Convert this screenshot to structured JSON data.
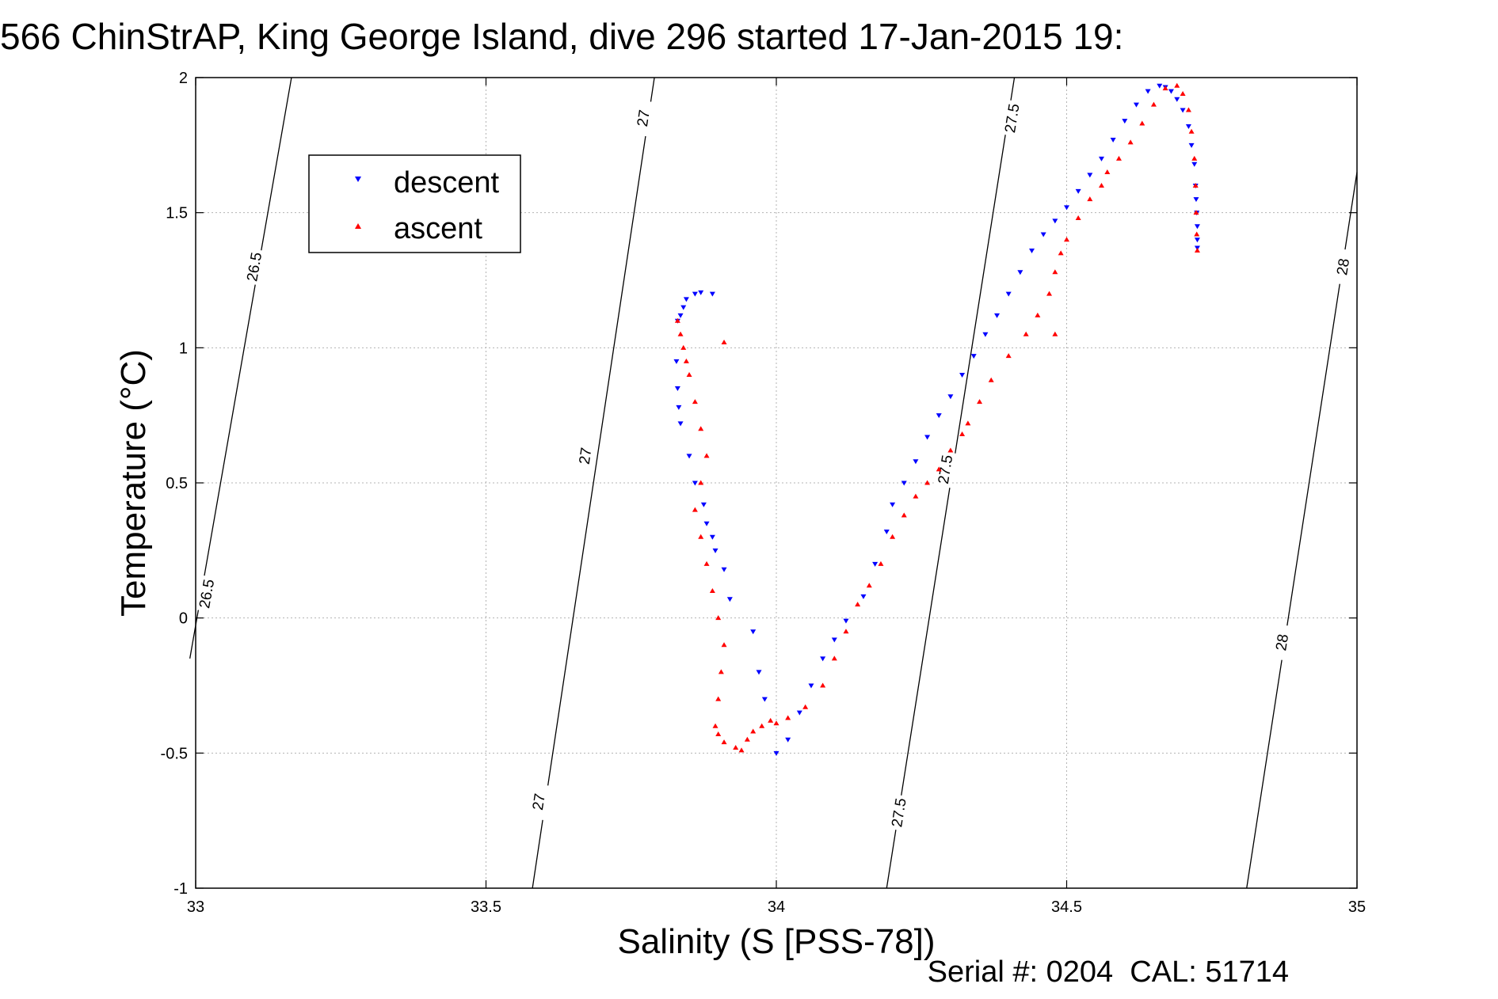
{
  "figure": {
    "title": "566 ChinStrAP, King George Island, dive 296 started 17-Jan-2015 19:",
    "footer": "Serial #: 0204  CAL: 51714"
  },
  "colors": {
    "descent": "#0000ff",
    "ascent": "#ff0000",
    "contour": "#000000",
    "grid": "#b3b3b3"
  },
  "chart_data": {
    "type": "scatter",
    "title": "566 ChinStrAP, King George Island, dive 296 started 17-Jan-2015 19:",
    "xlabel": "Salinity (S [PSS-78])",
    "ylabel": "Temperature (°C)",
    "xlim": [
      33,
      35
    ],
    "ylim": [
      -1,
      2
    ],
    "xticks": [
      33,
      33.5,
      34,
      34.5,
      35
    ],
    "xtick_labels": [
      "33",
      "33.5",
      "34",
      "34.5",
      "35"
    ],
    "yticks": [
      -1,
      -0.5,
      0,
      0.5,
      1,
      1.5,
      2
    ],
    "ytick_labels": [
      "-1",
      "-0.5",
      "0",
      "0.5",
      "1",
      "1.5",
      "2"
    ],
    "grid": true,
    "legend": {
      "placement": "top-left"
    },
    "contours": [
      {
        "level": "26.5",
        "start": [
          32.99,
          -0.15
        ],
        "end": [
          33.165,
          2
        ],
        "labels": [
          {
            "text": "26.5",
            "x": 33.018,
            "y": 0.09
          },
          {
            "text": "26.5",
            "x": 33.1,
            "y": 1.3
          }
        ]
      },
      {
        "level": "27",
        "start": [
          33.58,
          -1
        ],
        "end": [
          33.79,
          2
        ],
        "labels": [
          {
            "text": "27",
            "x": 33.59,
            "y": -0.68
          },
          {
            "text": "27",
            "x": 33.67,
            "y": 0.6
          },
          {
            "text": "27",
            "x": 33.77,
            "y": 1.85
          }
        ]
      },
      {
        "level": "27.5",
        "start": [
          34.19,
          -1
        ],
        "end": [
          34.41,
          2
        ],
        "labels": [
          {
            "text": "27.5",
            "x": 34.21,
            "y": -0.72
          },
          {
            "text": "27.5",
            "x": 34.29,
            "y": 0.55
          },
          {
            "text": "27.5",
            "x": 34.405,
            "y": 1.85
          }
        ]
      },
      {
        "level": "28",
        "start": [
          34.81,
          -1
        ],
        "end": [
          35,
          1.65
        ],
        "labels": [
          {
            "text": "28",
            "x": 34.87,
            "y": -0.09
          },
          {
            "text": "28",
            "x": 34.975,
            "y": 1.3
          }
        ]
      }
    ],
    "series": [
      {
        "name": "descent",
        "marker": "triangle-down",
        "x": [
          33.86,
          33.87,
          33.89,
          33.845,
          33.84,
          33.835,
          33.83,
          33.828,
          33.83,
          33.832,
          33.835,
          33.85,
          33.86,
          33.875,
          33.88,
          33.89,
          33.895,
          33.91,
          33.92,
          33.96,
          33.97,
          33.98,
          34.0,
          34.02,
          34.04,
          34.06,
          34.08,
          34.1,
          34.12,
          34.15,
          34.17,
          34.19,
          34.2,
          34.22,
          34.24,
          34.26,
          34.28,
          34.3,
          34.32,
          34.34,
          34.36,
          34.38,
          34.4,
          34.42,
          34.44,
          34.46,
          34.48,
          34.5,
          34.52,
          34.54,
          34.56,
          34.58,
          34.6,
          34.62,
          34.64,
          34.66,
          34.67,
          34.68,
          34.69,
          34.7,
          34.71,
          34.715,
          34.72,
          34.722,
          34.723,
          34.724,
          34.725,
          34.725,
          34.725
        ],
        "y": [
          1.2,
          1.205,
          1.2,
          1.18,
          1.15,
          1.12,
          1.1,
          0.95,
          0.85,
          0.78,
          0.72,
          0.6,
          0.5,
          0.42,
          0.35,
          0.3,
          0.25,
          0.18,
          0.07,
          -0.05,
          -0.2,
          -0.3,
          -0.5,
          -0.45,
          -0.35,
          -0.25,
          -0.15,
          -0.08,
          -0.01,
          0.08,
          0.2,
          0.32,
          0.42,
          0.5,
          0.58,
          0.67,
          0.75,
          0.82,
          0.9,
          0.97,
          1.05,
          1.12,
          1.2,
          1.28,
          1.36,
          1.42,
          1.47,
          1.52,
          1.58,
          1.64,
          1.7,
          1.77,
          1.84,
          1.9,
          1.95,
          1.97,
          1.965,
          1.95,
          1.92,
          1.88,
          1.82,
          1.75,
          1.68,
          1.6,
          1.55,
          1.5,
          1.45,
          1.4,
          1.37
        ]
      },
      {
        "name": "ascent",
        "marker": "triangle-up",
        "x": [
          33.83,
          33.835,
          33.84,
          33.845,
          33.85,
          33.86,
          33.87,
          33.88,
          33.87,
          33.86,
          33.87,
          33.88,
          33.89,
          33.9,
          33.91,
          33.905,
          33.9,
          33.895,
          33.9,
          33.91,
          33.93,
          33.94,
          33.95,
          33.96,
          33.975,
          33.99,
          34.0,
          34.02,
          34.05,
          34.08,
          34.1,
          34.12,
          34.14,
          34.16,
          34.18,
          34.2,
          34.22,
          34.24,
          34.26,
          34.28,
          34.3,
          34.32,
          34.33,
          34.35,
          34.37,
          34.4,
          34.43,
          34.45,
          34.47,
          34.48,
          34.49,
          34.5,
          34.52,
          34.54,
          34.56,
          34.57,
          34.59,
          34.61,
          34.63,
          34.65,
          34.67,
          34.69,
          34.7,
          34.71,
          34.715,
          34.72,
          34.722,
          34.723,
          34.724,
          34.725,
          33.91,
          34.48
        ],
        "y": [
          1.1,
          1.05,
          1.0,
          0.95,
          0.9,
          0.8,
          0.7,
          0.6,
          0.5,
          0.4,
          0.3,
          0.2,
          0.1,
          0.0,
          -0.1,
          -0.2,
          -0.3,
          -0.4,
          -0.43,
          -0.46,
          -0.48,
          -0.49,
          -0.45,
          -0.42,
          -0.4,
          -0.38,
          -0.39,
          -0.37,
          -0.33,
          -0.25,
          -0.15,
          -0.05,
          0.05,
          0.12,
          0.2,
          0.3,
          0.38,
          0.45,
          0.5,
          0.55,
          0.62,
          0.68,
          0.72,
          0.8,
          0.88,
          0.97,
          1.05,
          1.12,
          1.2,
          1.28,
          1.35,
          1.4,
          1.48,
          1.55,
          1.6,
          1.65,
          1.7,
          1.76,
          1.83,
          1.9,
          1.96,
          1.97,
          1.94,
          1.88,
          1.8,
          1.7,
          1.6,
          1.5,
          1.42,
          1.36,
          1.02,
          1.05
        ]
      }
    ]
  }
}
